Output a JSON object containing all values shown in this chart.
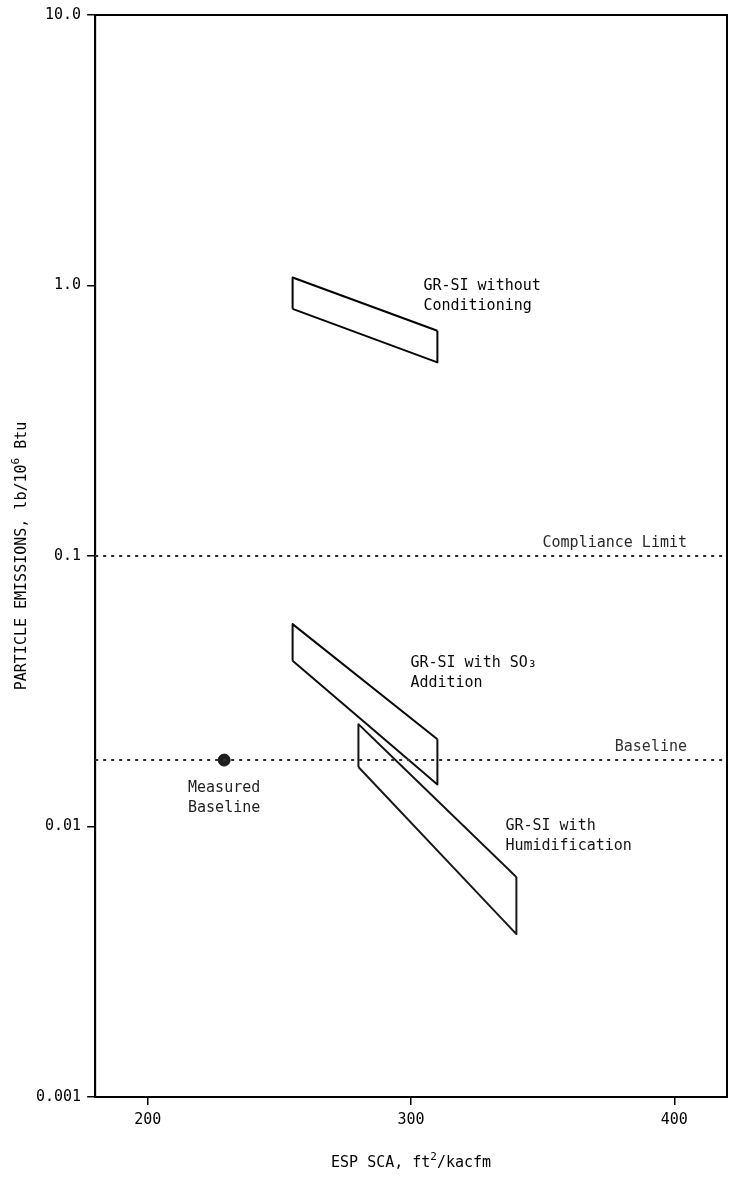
{
  "chart_data": {
    "type": "line",
    "xlabel": "ESP SCA, ft$^{2}$/kacfm",
    "ylabel": "PARTICLE EMISSIONS, lb/10$^{6}$ Btu",
    "log": "y",
    "xlim": [
      180,
      420
    ],
    "xticks": [
      200,
      300,
      400
    ],
    "ylim": [
      0.001,
      10
    ],
    "yticks": [
      0.001,
      0.01,
      0.1,
      {
        "value": 1,
        "label": "1.0"
      },
      {
        "value": 10,
        "label": "10.0"
      }
    ],
    "grid": false,
    "marker": "none",
    "line_style": "solid",
    "series": [
      {
        "name": "GR-SI without Conditioning",
        "color": "#000000",
        "x": [
          255,
          255,
          310
        ],
        "values": [
          0.82,
          1.07,
          0.68
        ]
      },
      {
        "color": "#050505",
        "x": [
          255,
          310,
          310
        ],
        "values": [
          0.82,
          0.52,
          0.68
        ]
      },
      {
        "name": "GR-SI with SO₃ Addition",
        "color": "#0a0a0a",
        "x": [
          255,
          255,
          310
        ],
        "values": [
          0.041,
          0.056,
          0.021
        ]
      },
      {
        "color": "#0f0f0f",
        "x": [
          255,
          310,
          310
        ],
        "values": [
          0.041,
          0.0143,
          0.021
        ]
      },
      {
        "name": "GR-SI with Humidification",
        "color": "#141414",
        "x": [
          280,
          280,
          340
        ],
        "values": [
          0.0166,
          0.0239,
          0.0065
        ]
      },
      {
        "color": "#191919",
        "x": [
          280,
          340,
          340
        ],
        "values": [
          0.0166,
          0.004,
          0.0065
        ]
      },
      {
        "name": "Measured Baseline",
        "type": "scatter",
        "marker": "circle",
        "color": "#1e1e1e",
        "x": [
          229
        ],
        "values": [
          0.0176
        ]
      }
    ],
    "ref_lines": [
      {
        "axis": "y",
        "value": 0.1,
        "label": "Compliance Limit",
        "line_style": "dotted",
        "color": "#282828"
      },
      {
        "axis": "y",
        "value": 0.0176,
        "label": "Baseline",
        "line_style": "dotted",
        "color": "#323232"
      }
    ]
  }
}
